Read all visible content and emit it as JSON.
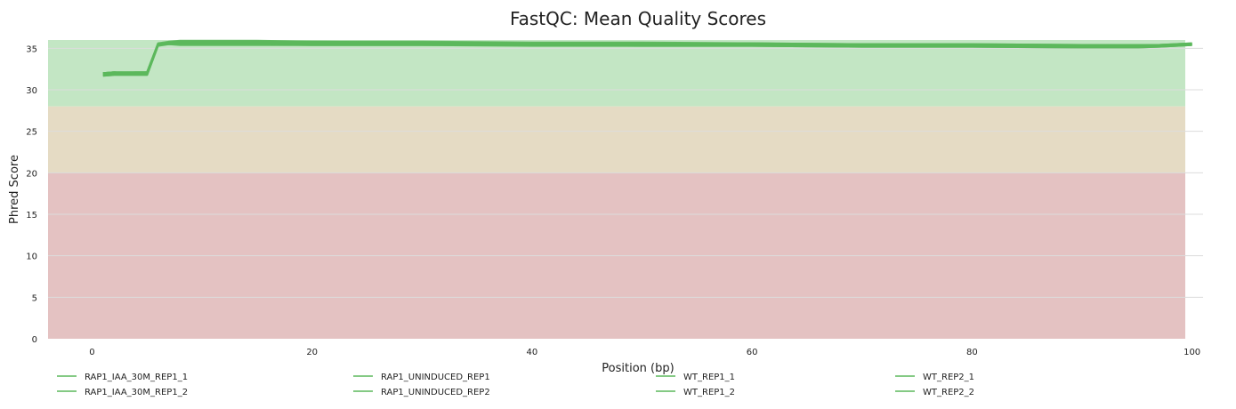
{
  "chart_data": {
    "type": "line",
    "title": "FastQC: Mean Quality Scores",
    "xlabel": "Position (bp)",
    "ylabel": "Phred Score",
    "xlim": [
      -4,
      101
    ],
    "ylim": [
      0,
      36
    ],
    "xticks": [
      0,
      20,
      40,
      60,
      80,
      100
    ],
    "yticks": [
      0,
      5,
      10,
      15,
      20,
      25,
      30,
      35
    ],
    "grid": "horizontal",
    "legend_position": "bottom",
    "line_color": "#5cb85c",
    "bands": [
      {
        "from": 28,
        "to": 36,
        "color": "#c3e6c4"
      },
      {
        "from": 20,
        "to": 28,
        "color": "#e5dbc4"
      },
      {
        "from": 0,
        "to": 20,
        "color": "#e4c2c2"
      }
    ],
    "series": [
      {
        "name": "RAP1_IAA_30M_REP1_1",
        "x": [
          1,
          2,
          3,
          4,
          5,
          6,
          7,
          8,
          10,
          15,
          20,
          30,
          40,
          50,
          60,
          70,
          80,
          90,
          95,
          97,
          100
        ],
        "y": [
          32.0,
          32.1,
          32.1,
          32.1,
          32.1,
          35.6,
          35.8,
          35.9,
          35.9,
          35.9,
          35.8,
          35.8,
          35.7,
          35.7,
          35.6,
          35.5,
          35.5,
          35.4,
          35.4,
          35.4,
          35.6
        ]
      },
      {
        "name": "RAP1_IAA_30M_REP1_2",
        "x": [
          1,
          2,
          3,
          4,
          5,
          6,
          7,
          8,
          10,
          15,
          20,
          30,
          40,
          50,
          60,
          70,
          80,
          90,
          95,
          97,
          100
        ],
        "y": [
          31.7,
          31.8,
          31.8,
          31.8,
          31.8,
          35.4,
          35.5,
          35.4,
          35.4,
          35.4,
          35.4,
          35.4,
          35.3,
          35.3,
          35.3,
          35.2,
          35.2,
          35.1,
          35.1,
          35.2,
          35.4
        ]
      },
      {
        "name": "RAP1_UNINDUCED_REP1",
        "x": [
          1,
          2,
          3,
          4,
          5,
          6,
          7,
          8,
          10,
          15,
          20,
          30,
          40,
          50,
          60,
          70,
          80,
          90,
          95,
          97,
          100
        ],
        "y": [
          32.0,
          32.1,
          32.0,
          32.0,
          32.1,
          35.5,
          35.7,
          35.8,
          35.8,
          35.8,
          35.7,
          35.7,
          35.6,
          35.6,
          35.6,
          35.4,
          35.4,
          35.3,
          35.3,
          35.4,
          35.5
        ]
      },
      {
        "name": "RAP1_UNINDUCED_REP2",
        "x": [
          1,
          2,
          3,
          4,
          5,
          6,
          7,
          8,
          10,
          15,
          20,
          30,
          40,
          50,
          60,
          70,
          80,
          90,
          95,
          97,
          100
        ],
        "y": [
          31.8,
          31.9,
          31.9,
          31.9,
          31.9,
          35.4,
          35.6,
          35.6,
          35.6,
          35.6,
          35.5,
          35.5,
          35.5,
          35.4,
          35.4,
          35.3,
          35.3,
          35.2,
          35.2,
          35.3,
          35.5
        ]
      },
      {
        "name": "WT_REP1_1",
        "x": [
          1,
          2,
          3,
          4,
          5,
          6,
          7,
          8,
          10,
          15,
          20,
          30,
          40,
          50,
          60,
          70,
          80,
          90,
          95,
          97,
          100
        ],
        "y": [
          32.0,
          32.1,
          32.1,
          32.1,
          32.1,
          35.5,
          35.7,
          35.8,
          35.8,
          35.8,
          35.8,
          35.7,
          35.6,
          35.6,
          35.6,
          35.5,
          35.5,
          35.4,
          35.4,
          35.4,
          35.6
        ]
      },
      {
        "name": "WT_REP1_2",
        "x": [
          1,
          2,
          3,
          4,
          5,
          6,
          7,
          8,
          10,
          15,
          20,
          30,
          40,
          50,
          60,
          70,
          80,
          90,
          95,
          97,
          100
        ],
        "y": [
          31.7,
          31.8,
          31.8,
          31.8,
          31.8,
          35.3,
          35.5,
          35.5,
          35.5,
          35.5,
          35.4,
          35.4,
          35.4,
          35.3,
          35.3,
          35.2,
          35.2,
          35.1,
          35.1,
          35.2,
          35.4
        ]
      },
      {
        "name": "WT_REP2_1",
        "x": [
          1,
          2,
          3,
          4,
          5,
          6,
          7,
          8,
          10,
          15,
          20,
          30,
          40,
          50,
          60,
          70,
          80,
          90,
          95,
          97,
          100
        ],
        "y": [
          32.0,
          32.1,
          32.0,
          32.1,
          32.1,
          35.5,
          35.7,
          35.8,
          35.8,
          35.8,
          35.7,
          35.7,
          35.6,
          35.6,
          35.5,
          35.5,
          35.4,
          35.4,
          35.3,
          35.4,
          35.5
        ]
      },
      {
        "name": "WT_REP2_2",
        "x": [
          1,
          2,
          3,
          4,
          5,
          6,
          7,
          8,
          10,
          15,
          20,
          30,
          40,
          50,
          60,
          70,
          80,
          90,
          95,
          97,
          100
        ],
        "y": [
          31.8,
          31.9,
          31.9,
          31.9,
          31.9,
          35.4,
          35.6,
          35.6,
          35.6,
          35.6,
          35.5,
          35.5,
          35.4,
          35.4,
          35.4,
          35.3,
          35.3,
          35.2,
          35.2,
          35.3,
          35.5
        ]
      }
    ]
  }
}
